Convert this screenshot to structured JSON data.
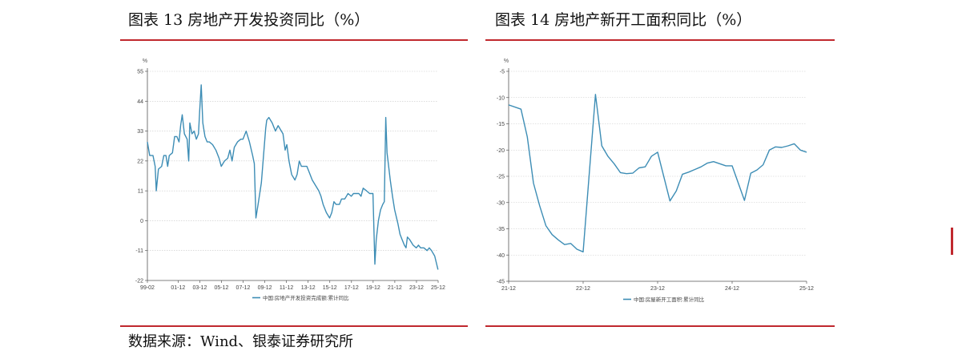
{
  "panels": [
    {
      "title": "图表 13 房地产开发投资同比（%）",
      "unit": "%",
      "legend": "中国:房地产开发投资完成额:累计同比",
      "chart_data": {
        "type": "line",
        "title": "图表 13 房地产开发投资同比（%）",
        "ylabel": "%",
        "ylim": [
          -22,
          55
        ],
        "yticks": [
          55,
          44,
          33,
          22,
          11,
          0,
          -11,
          -22
        ],
        "xlim": [
          1999.083,
          2025.917
        ],
        "xticks": [
          {
            "label": "99-02",
            "x": 1999.083
          },
          {
            "label": "01-12",
            "x": 2001.917
          },
          {
            "label": "03-12",
            "x": 2003.917
          },
          {
            "label": "05-12",
            "x": 2005.917
          },
          {
            "label": "07-12",
            "x": 2007.917
          },
          {
            "label": "09-12",
            "x": 2009.917
          },
          {
            "label": "11-12",
            "x": 2011.917
          },
          {
            "label": "13-12",
            "x": 2013.917
          },
          {
            "label": "15-12",
            "x": 2015.917
          },
          {
            "label": "17-12",
            "x": 2017.917
          },
          {
            "label": "19-12",
            "x": 2019.917
          },
          {
            "label": "21-12",
            "x": 2021.917
          },
          {
            "label": "23-12",
            "x": 2023.917
          },
          {
            "label": "25-12",
            "x": 2025.917
          }
        ],
        "grid": "horizontal-dashed",
        "legend_position": "bottom",
        "series": [
          {
            "name": "中国:房地产开发投资完成额:累计同比",
            "color": "#3d8db5",
            "points": [
              [
                1999.08,
                29
              ],
              [
                1999.3,
                24
              ],
              [
                1999.6,
                24
              ],
              [
                1999.8,
                20
              ],
              [
                1999.9,
                11
              ],
              [
                2000.1,
                19
              ],
              [
                2000.4,
                20
              ],
              [
                2000.6,
                24
              ],
              [
                2000.8,
                24
              ],
              [
                2000.95,
                20
              ],
              [
                2001.1,
                24
              ],
              [
                2001.4,
                25
              ],
              [
                2001.6,
                31
              ],
              [
                2001.8,
                31
              ],
              [
                2002.0,
                29
              ],
              [
                2002.15,
                35
              ],
              [
                2002.3,
                39
              ],
              [
                2002.5,
                32
              ],
              [
                2002.75,
                30
              ],
              [
                2002.9,
                22
              ],
              [
                2003.0,
                36
              ],
              [
                2003.2,
                32
              ],
              [
                2003.4,
                33
              ],
              [
                2003.6,
                30
              ],
              [
                2003.8,
                32
              ],
              [
                2003.9,
                40
              ],
              [
                2004.05,
                50
              ],
              [
                2004.2,
                36
              ],
              [
                2004.4,
                31
              ],
              [
                2004.6,
                29
              ],
              [
                2004.8,
                29
              ],
              [
                2005.1,
                28
              ],
              [
                2005.4,
                26
              ],
              [
                2005.7,
                23
              ],
              [
                2005.9,
                20
              ],
              [
                2006.2,
                22
              ],
              [
                2006.5,
                23
              ],
              [
                2006.7,
                26
              ],
              [
                2006.9,
                22
              ],
              [
                2007.1,
                27
              ],
              [
                2007.4,
                29
              ],
              [
                2007.7,
                30
              ],
              [
                2007.9,
                30
              ],
              [
                2008.2,
                33
              ],
              [
                2008.5,
                29
              ],
              [
                2008.8,
                24
              ],
              [
                2008.95,
                21
              ],
              [
                2009.1,
                1
              ],
              [
                2009.3,
                6
              ],
              [
                2009.6,
                14
              ],
              [
                2009.8,
                24
              ],
              [
                2010.0,
                34
              ],
              [
                2010.1,
                37
              ],
              [
                2010.3,
                38
              ],
              [
                2010.6,
                36
              ],
              [
                2010.9,
                33
              ],
              [
                2011.15,
                35
              ],
              [
                2011.3,
                34
              ],
              [
                2011.6,
                32
              ],
              [
                2011.8,
                26
              ],
              [
                2011.95,
                28
              ],
              [
                2012.15,
                22
              ],
              [
                2012.4,
                17
              ],
              [
                2012.7,
                15
              ],
              [
                2012.9,
                17
              ],
              [
                2013.1,
                22
              ],
              [
                2013.3,
                20
              ],
              [
                2013.6,
                20
              ],
              [
                2013.8,
                20
              ],
              [
                2014.0,
                18
              ],
              [
                2014.3,
                15
              ],
              [
                2014.6,
                13
              ],
              [
                2014.9,
                11
              ],
              [
                2015.1,
                9
              ],
              [
                2015.3,
                6
              ],
              [
                2015.6,
                3
              ],
              [
                2015.9,
                1
              ],
              [
                2016.1,
                3
              ],
              [
                2016.3,
                7
              ],
              [
                2016.5,
                6
              ],
              [
                2016.8,
                6
              ],
              [
                2017.0,
                8
              ],
              [
                2017.3,
                8
              ],
              [
                2017.6,
                10
              ],
              [
                2017.9,
                9
              ],
              [
                2018.1,
                10
              ],
              [
                2018.3,
                10
              ],
              [
                2018.6,
                10
              ],
              [
                2018.8,
                9
              ],
              [
                2019.0,
                12
              ],
              [
                2019.3,
                11
              ],
              [
                2019.6,
                10
              ],
              [
                2019.9,
                10
              ],
              [
                2020.08,
                -16
              ],
              [
                2020.2,
                -7
              ],
              [
                2020.4,
                0
              ],
              [
                2020.6,
                4
              ],
              [
                2020.8,
                6
              ],
              [
                2020.95,
                7
              ],
              [
                2021.08,
                38
              ],
              [
                2021.2,
                25
              ],
              [
                2021.5,
                15
              ],
              [
                2021.7,
                9
              ],
              [
                2021.9,
                4
              ],
              [
                2022.2,
                -1
              ],
              [
                2022.4,
                -5
              ],
              [
                2022.6,
                -7
              ],
              [
                2022.8,
                -9
              ],
              [
                2022.95,
                -10
              ],
              [
                2023.08,
                -6
              ],
              [
                2023.3,
                -7
              ],
              [
                2023.6,
                -9
              ],
              [
                2023.9,
                -10
              ],
              [
                2024.1,
                -9
              ],
              [
                2024.3,
                -10
              ],
              [
                2024.6,
                -10
              ],
              [
                2024.9,
                -11
              ],
              [
                2025.1,
                -10
              ],
              [
                2025.3,
                -11
              ],
              [
                2025.6,
                -13
              ],
              [
                2025.9,
                -18
              ]
            ]
          }
        ]
      }
    },
    {
      "title": "图表 14 房地产新开工面积同比（%）",
      "unit": "%",
      "legend": "中国:房屋新开工面积:累计同比",
      "chart_data": {
        "type": "line",
        "title": "图表 14 房地产新开工面积同比（%）",
        "ylabel": "%",
        "ylim": [
          -45,
          -5
        ],
        "yticks": [
          -5,
          -10,
          -15,
          -20,
          -25,
          -30,
          -35,
          -40,
          -45
        ],
        "xlim": [
          2021.917,
          2025.917
        ],
        "xticks": [
          {
            "label": "21-12",
            "x": 2021.917
          },
          {
            "label": "22-12",
            "x": 2022.917
          },
          {
            "label": "23-12",
            "x": 2023.917
          },
          {
            "label": "24-12",
            "x": 2024.917
          },
          {
            "label": "25-12",
            "x": 2025.917
          }
        ],
        "grid": "horizontal-dashed",
        "legend_position": "bottom",
        "series": [
          {
            "name": "中国:房屋新开工面积:累计同比",
            "color": "#3d8db5",
            "points": [
              [
                2021.917,
                -11.4
              ],
              [
                2022.083,
                -12.2
              ],
              [
                2022.167,
                -17.5
              ],
              [
                2022.25,
                -26.3
              ],
              [
                2022.333,
                -30.6
              ],
              [
                2022.417,
                -34.4
              ],
              [
                2022.5,
                -36.1
              ],
              [
                2022.583,
                -37.1
              ],
              [
                2022.667,
                -38.0
              ],
              [
                2022.75,
                -37.8
              ],
              [
                2022.833,
                -38.9
              ],
              [
                2022.917,
                -39.4
              ],
              [
                2023.083,
                -9.4
              ],
              [
                2023.167,
                -19.2
              ],
              [
                2023.25,
                -21.2
              ],
              [
                2023.333,
                -22.6
              ],
              [
                2023.417,
                -24.3
              ],
              [
                2023.5,
                -24.5
              ],
              [
                2023.583,
                -24.4
              ],
              [
                2023.667,
                -23.4
              ],
              [
                2023.75,
                -23.2
              ],
              [
                2023.833,
                -21.2
              ],
              [
                2023.917,
                -20.4
              ],
              [
                2024.083,
                -29.7
              ],
              [
                2024.167,
                -27.8
              ],
              [
                2024.25,
                -24.6
              ],
              [
                2024.333,
                -24.2
              ],
              [
                2024.417,
                -23.7
              ],
              [
                2024.5,
                -23.2
              ],
              [
                2024.583,
                -22.5
              ],
              [
                2024.667,
                -22.2
              ],
              [
                2024.75,
                -22.6
              ],
              [
                2024.833,
                -23.0
              ],
              [
                2024.917,
                -23.0
              ],
              [
                2025.083,
                -29.6
              ],
              [
                2025.167,
                -24.4
              ],
              [
                2025.25,
                -23.8
              ],
              [
                2025.333,
                -22.8
              ],
              [
                2025.417,
                -20.0
              ],
              [
                2025.5,
                -19.4
              ],
              [
                2025.583,
                -19.5
              ],
              [
                2025.667,
                -19.2
              ],
              [
                2025.75,
                -18.8
              ],
              [
                2025.833,
                -20.0
              ],
              [
                2025.917,
                -20.4
              ]
            ]
          }
        ]
      }
    }
  ],
  "source": "数据来源：Wind、银泰证券研究所",
  "colors": {
    "accent_rule": "#c0282e",
    "series": "#3d8db5",
    "axis": "#555555",
    "grid": "#c8c8c8"
  }
}
